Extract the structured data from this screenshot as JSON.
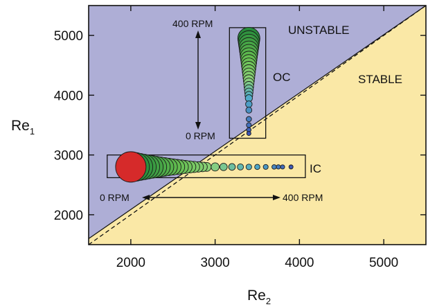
{
  "chart_data": {
    "type": "scatter",
    "xlabel": "Re",
    "xlabel_sub": "2",
    "ylabel": "Re",
    "ylabel_sub": "1",
    "xlim": [
      1500,
      5500
    ],
    "ylim": [
      1500,
      5500
    ],
    "x_ticks": [
      2000,
      3000,
      4000,
      5000
    ],
    "y_ticks": [
      2000,
      3000,
      4000,
      5000
    ],
    "grid": false,
    "regions": {
      "unstable_color": "#aeaed6",
      "stable_color": "#fae8a6",
      "boundary_line": {
        "from": [
          1500,
          1600
        ],
        "to": [
          5500,
          5500
        ]
      },
      "dashed_line": {
        "from": [
          1500,
          1500
        ],
        "to": [
          5500,
          5500
        ]
      }
    },
    "labels": {
      "unstable": "UNSTABLE",
      "stable": "STABLE",
      "oc": "OC",
      "ic": "IC",
      "oc_top": "400 RPM",
      "oc_bottom": "0 RPM",
      "ic_left": "0 RPM",
      "ic_right": "400 RPM"
    },
    "boxes": {
      "oc": {
        "x": [
          3170,
          3600
        ],
        "y": [
          3280,
          5130
        ]
      },
      "ic": {
        "x": [
          1720,
          4070
        ],
        "y": [
          2620,
          3000
        ]
      }
    },
    "series": [
      {
        "name": "OC",
        "x": [
          3400,
          3400,
          3400,
          3400,
          3400,
          3400,
          3400,
          3400,
          3400,
          3400,
          3400,
          3400,
          3400,
          3400,
          3400,
          3400,
          3400,
          3400,
          3400,
          3400,
          3400,
          3400,
          3400,
          3400,
          3400,
          3400,
          3400
        ],
        "y": [
          4950,
          4900,
          4850,
          4800,
          4750,
          4700,
          4650,
          4600,
          4550,
          4500,
          4450,
          4400,
          4350,
          4300,
          4250,
          4200,
          4150,
          4100,
          4050,
          4000,
          3950,
          3850,
          3750,
          3600,
          3500,
          3420,
          3360
        ],
        "rpm": [
          400,
          385,
          370,
          355,
          340,
          325,
          310,
          295,
          280,
          265,
          250,
          235,
          220,
          205,
          190,
          175,
          160,
          145,
          130,
          115,
          100,
          85,
          70,
          50,
          35,
          20,
          5
        ]
      },
      {
        "name": "IC",
        "x": [
          2000,
          2050,
          2100,
          2150,
          2200,
          2250,
          2300,
          2350,
          2400,
          2450,
          2500,
          2550,
          2600,
          2650,
          2700,
          2750,
          2800,
          2850,
          2900,
          3000,
          3100,
          3200,
          3300,
          3400,
          3500,
          3600,
          3700,
          3750,
          3800,
          3900
        ],
        "y": [
          2800,
          2800,
          2800,
          2800,
          2800,
          2800,
          2800,
          2800,
          2800,
          2800,
          2800,
          2800,
          2800,
          2800,
          2800,
          2800,
          2800,
          2800,
          2800,
          2800,
          2800,
          2800,
          2800,
          2800,
          2800,
          2800,
          2800,
          2800,
          2800,
          2800
        ],
        "rpm": [
          0,
          12,
          24,
          36,
          48,
          60,
          72,
          84,
          96,
          108,
          120,
          132,
          144,
          156,
          168,
          180,
          192,
          204,
          216,
          230,
          245,
          260,
          275,
          290,
          305,
          320,
          340,
          355,
          370,
          390
        ]
      }
    ]
  }
}
